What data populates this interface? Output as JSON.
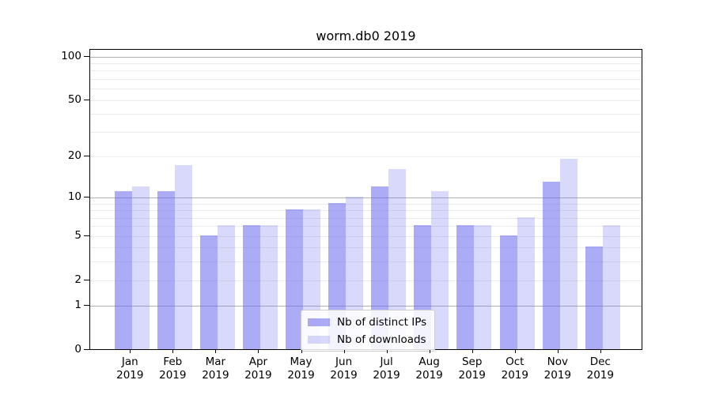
{
  "title": "worm.db0 2019",
  "colors": {
    "ips_fill": "rgba(102,102,238,0.55)",
    "downloads_fill": "rgba(102,102,238,0.25)",
    "major_grid": "#b0b0b0",
    "minor_grid": "#ebebeb",
    "axis": "#000000"
  },
  "legend": {
    "items": [
      {
        "key": "ips",
        "label": "Nb of distinct IPs"
      },
      {
        "key": "downloads",
        "label": "Nb of downloads"
      }
    ]
  },
  "y_axis": {
    "tick_values": [
      100,
      50,
      20,
      10,
      5,
      2,
      1,
      0
    ],
    "tick_labels": [
      "100",
      "50",
      "20",
      "10",
      "5",
      "2",
      "1",
      "0"
    ],
    "major_grid_values": [
      1,
      10,
      100
    ],
    "minor_grid_values": [
      2,
      3,
      4,
      5,
      6,
      7,
      8,
      9,
      20,
      30,
      40,
      50,
      60,
      70,
      80,
      90
    ]
  },
  "x_axis": {
    "months": [
      {
        "label": "Jan",
        "year": "2019"
      },
      {
        "label": "Feb",
        "year": "2019"
      },
      {
        "label": "Mar",
        "year": "2019"
      },
      {
        "label": "Apr",
        "year": "2019"
      },
      {
        "label": "May",
        "year": "2019"
      },
      {
        "label": "Jun",
        "year": "2019"
      },
      {
        "label": "Jul",
        "year": "2019"
      },
      {
        "label": "Aug",
        "year": "2019"
      },
      {
        "label": "Sep",
        "year": "2019"
      },
      {
        "label": "Oct",
        "year": "2019"
      },
      {
        "label": "Nov",
        "year": "2019"
      },
      {
        "label": "Dec",
        "year": "2019"
      }
    ]
  },
  "chart_data": {
    "type": "bar",
    "title": "worm.db0 2019",
    "categories": [
      "Jan 2019",
      "Feb 2019",
      "Mar 2019",
      "Apr 2019",
      "May 2019",
      "Jun 2019",
      "Jul 2019",
      "Aug 2019",
      "Sep 2019",
      "Oct 2019",
      "Nov 2019",
      "Dec 2019"
    ],
    "series": [
      {
        "name": "Nb of distinct IPs",
        "values": [
          11,
          11,
          5,
          6,
          8,
          9,
          12,
          6,
          6,
          5,
          13,
          4
        ]
      },
      {
        "name": "Nb of downloads",
        "values": [
          12,
          17,
          6,
          6,
          8,
          10,
          16,
          11,
          6,
          7,
          19,
          6
        ]
      }
    ],
    "xlabel": "",
    "ylabel": "",
    "yscale": "log1p",
    "yticks": [
      0,
      1,
      2,
      5,
      10,
      20,
      50,
      100
    ],
    "ylim": [
      0,
      112
    ],
    "grid": true,
    "legend_position": "lower center"
  }
}
